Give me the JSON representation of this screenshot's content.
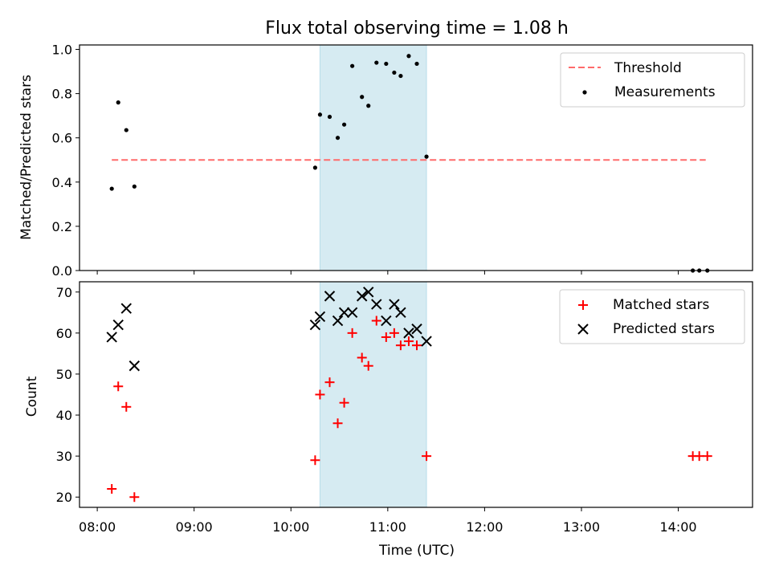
{
  "chart_data": [
    {
      "type": "scatter",
      "title": "Flux total observing time = 1.08 h",
      "xlabel": "",
      "ylabel": "Matched/Predicted stars",
      "xlim": [
        "07:49",
        "14:46"
      ],
      "ylim": [
        0,
        1.02
      ],
      "yticks": [
        "0.0",
        "0.2",
        "0.4",
        "0.6",
        "0.8",
        "1.0"
      ],
      "grid": false,
      "legend_position": "top-right",
      "highlight_span": {
        "start": "10:18",
        "end": "11:24",
        "color": "#add8e6"
      },
      "threshold": {
        "name": "Threshold",
        "value": 0.5,
        "from": "08:09",
        "to": "14:17",
        "color": "#ff6b6b"
      },
      "series": [
        {
          "name": "Measurements",
          "color": "#000000",
          "points": [
            {
              "x": "08:09",
              "y": 0.37
            },
            {
              "x": "08:13",
              "y": 0.76
            },
            {
              "x": "08:18",
              "y": 0.635
            },
            {
              "x": "08:23",
              "y": 0.38
            },
            {
              "x": "10:15",
              "y": 0.465
            },
            {
              "x": "10:18",
              "y": 0.705
            },
            {
              "x": "10:24",
              "y": 0.695
            },
            {
              "x": "10:29",
              "y": 0.6
            },
            {
              "x": "10:33",
              "y": 0.66
            },
            {
              "x": "10:38",
              "y": 0.925
            },
            {
              "x": "10:44",
              "y": 0.785
            },
            {
              "x": "10:48",
              "y": 0.745
            },
            {
              "x": "10:53",
              "y": 0.94
            },
            {
              "x": "10:59",
              "y": 0.935
            },
            {
              "x": "11:04",
              "y": 0.895
            },
            {
              "x": "11:08",
              "y": 0.88
            },
            {
              "x": "11:13",
              "y": 0.97
            },
            {
              "x": "11:18",
              "y": 0.935
            },
            {
              "x": "11:24",
              "y": 0.515
            },
            {
              "x": "14:09",
              "y": 0.0
            },
            {
              "x": "14:13",
              "y": 0.0
            },
            {
              "x": "14:18",
              "y": 0.0
            }
          ]
        }
      ]
    },
    {
      "type": "scatter",
      "title": "",
      "xlabel": "Time (UTC)",
      "ylabel": "Count",
      "xlim": [
        "07:49",
        "14:46"
      ],
      "xticks": [
        "08:00",
        "09:00",
        "10:00",
        "11:00",
        "12:00",
        "13:00",
        "14:00"
      ],
      "ylim": [
        17.5,
        72.5
      ],
      "yticks": [
        "20",
        "30",
        "40",
        "50",
        "60",
        "70"
      ],
      "grid": false,
      "legend_position": "top-right",
      "highlight_span": {
        "start": "10:18",
        "end": "11:24",
        "color": "#add8e6"
      },
      "series": [
        {
          "name": "Matched stars",
          "marker": "plus",
          "color": "#ff0000",
          "points": [
            {
              "x": "08:09",
              "y": 22
            },
            {
              "x": "08:13",
              "y": 47
            },
            {
              "x": "08:18",
              "y": 42
            },
            {
              "x": "08:23",
              "y": 20
            },
            {
              "x": "10:15",
              "y": 29
            },
            {
              "x": "10:18",
              "y": 45
            },
            {
              "x": "10:24",
              "y": 48
            },
            {
              "x": "10:29",
              "y": 38
            },
            {
              "x": "10:33",
              "y": 43
            },
            {
              "x": "10:38",
              "y": 60
            },
            {
              "x": "10:44",
              "y": 54
            },
            {
              "x": "10:48",
              "y": 52
            },
            {
              "x": "10:53",
              "y": 63
            },
            {
              "x": "10:59",
              "y": 59
            },
            {
              "x": "11:04",
              "y": 60
            },
            {
              "x": "11:08",
              "y": 57
            },
            {
              "x": "11:13",
              "y": 58
            },
            {
              "x": "11:18",
              "y": 57
            },
            {
              "x": "11:24",
              "y": 30
            },
            {
              "x": "14:09",
              "y": 30
            },
            {
              "x": "14:13",
              "y": 30
            },
            {
              "x": "14:18",
              "y": 30
            }
          ]
        },
        {
          "name": "Predicted stars",
          "marker": "x",
          "color": "#000000",
          "points": [
            {
              "x": "08:09",
              "y": 59
            },
            {
              "x": "08:13",
              "y": 62
            },
            {
              "x": "08:18",
              "y": 66
            },
            {
              "x": "08:23",
              "y": 52
            },
            {
              "x": "10:15",
              "y": 62
            },
            {
              "x": "10:18",
              "y": 64
            },
            {
              "x": "10:24",
              "y": 69
            },
            {
              "x": "10:29",
              "y": 63
            },
            {
              "x": "10:33",
              "y": 65
            },
            {
              "x": "10:38",
              "y": 65
            },
            {
              "x": "10:44",
              "y": 69
            },
            {
              "x": "10:48",
              "y": 70
            },
            {
              "x": "10:53",
              "y": 67
            },
            {
              "x": "10:59",
              "y": 63
            },
            {
              "x": "11:04",
              "y": 67
            },
            {
              "x": "11:08",
              "y": 65
            },
            {
              "x": "11:13",
              "y": 60
            },
            {
              "x": "11:18",
              "y": 61
            },
            {
              "x": "11:24",
              "y": 58
            }
          ]
        }
      ]
    }
  ]
}
